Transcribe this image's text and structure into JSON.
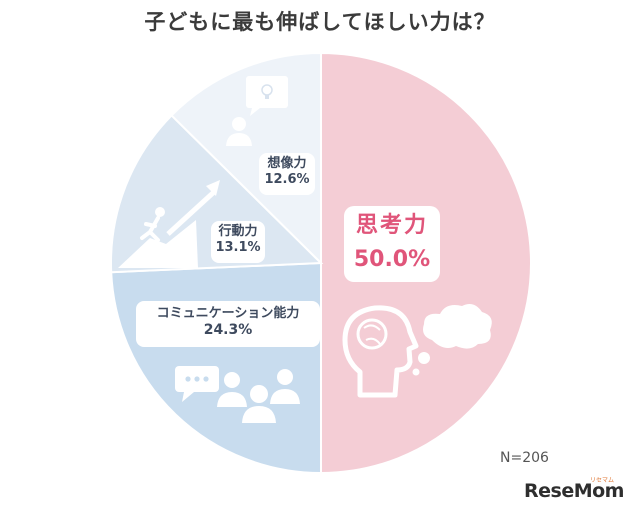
{
  "chart_data": {
    "type": "pie",
    "title": "子どもに最も伸ばしてほしい力は？",
    "slices": [
      {
        "name": "思考力",
        "value": 50.0,
        "label": "50.0%",
        "color": "#f4cdd5"
      },
      {
        "name": "コミュニケーション能力",
        "value": 24.3,
        "label": "24.3%",
        "color": "#c8dcee"
      },
      {
        "name": "行動力",
        "value": 13.1,
        "label": "13.1%",
        "color": "#dce7f2"
      },
      {
        "name": "想像力",
        "value": 12.6,
        "label": "12.6%",
        "color": "#eef3f9"
      }
    ],
    "start": "12 o'clock",
    "direction": "clockwise",
    "legend": "none"
  },
  "note": "N=206",
  "logo": {
    "text": "ReseMom",
    "sub": "リセマム"
  },
  "icons": [
    "brain-thought-icon",
    "people-chat-icon",
    "climber-arrow-icon",
    "person-idea-icon"
  ]
}
